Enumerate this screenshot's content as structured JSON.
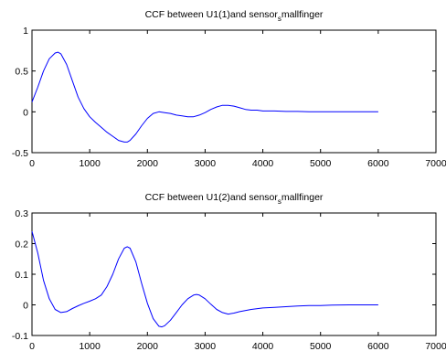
{
  "chart_data": [
    {
      "type": "line",
      "title": "CCF between U1(1)and sensor",
      "title_sub": "s",
      "title_end": "mallfinger",
      "xlim": [
        0,
        7000
      ],
      "ylim": [
        -0.5,
        1
      ],
      "xticks": [
        "0",
        "1000",
        "2000",
        "3000",
        "4000",
        "5000",
        "6000",
        "7000"
      ],
      "yticks": [
        "-0.5",
        "0",
        "0.5",
        "1"
      ],
      "grid": false,
      "series": [
        {
          "color": "#0000ff",
          "x": [
            0,
            100,
            200,
            300,
            400,
            450,
            500,
            600,
            700,
            800,
            900,
            1000,
            1100,
            1200,
            1300,
            1400,
            1500,
            1600,
            1650,
            1700,
            1800,
            1900,
            2000,
            2100,
            2200,
            2300,
            2400,
            2500,
            2600,
            2700,
            2800,
            2900,
            3000,
            3100,
            3200,
            3300,
            3400,
            3500,
            3600,
            3700,
            3800,
            3900,
            4000,
            4200,
            4400,
            4600,
            4800,
            5000,
            5200,
            5500,
            6000
          ],
          "y": [
            0.12,
            0.3,
            0.5,
            0.65,
            0.72,
            0.73,
            0.71,
            0.58,
            0.38,
            0.18,
            0.04,
            -0.06,
            -0.13,
            -0.19,
            -0.25,
            -0.3,
            -0.35,
            -0.37,
            -0.37,
            -0.35,
            -0.27,
            -0.17,
            -0.08,
            -0.02,
            0.0,
            -0.01,
            -0.02,
            -0.04,
            -0.05,
            -0.06,
            -0.06,
            -0.04,
            -0.01,
            0.03,
            0.06,
            0.08,
            0.08,
            0.07,
            0.05,
            0.03,
            0.02,
            0.02,
            0.01,
            0.01,
            0.005,
            0.005,
            0.002,
            0.002,
            0.0,
            0.0,
            0.0
          ]
        }
      ]
    },
    {
      "type": "line",
      "title": "CCF between U1(2)and sensor",
      "title_sub": "s",
      "title_end": "mallfinger",
      "xlim": [
        0,
        7000
      ],
      "ylim": [
        -0.1,
        0.3
      ],
      "xticks": [
        "0",
        "1000",
        "2000",
        "3000",
        "4000",
        "5000",
        "6000",
        "7000"
      ],
      "yticks": [
        "-0.1",
        "0",
        "0.1",
        "0.2",
        "0.3"
      ],
      "grid": false,
      "series": [
        {
          "color": "#0000ff",
          "x": [
            0,
            100,
            200,
            300,
            400,
            500,
            600,
            700,
            800,
            900,
            1000,
            1100,
            1200,
            1300,
            1400,
            1500,
            1600,
            1650,
            1700,
            1800,
            1900,
            2000,
            2100,
            2200,
            2250,
            2300,
            2400,
            2500,
            2600,
            2700,
            2800,
            2850,
            2900,
            3000,
            3100,
            3200,
            3300,
            3400,
            3500,
            3600,
            3800,
            4000,
            4200,
            4400,
            4600,
            4800,
            5000,
            5200,
            5500,
            6000
          ],
          "y": [
            0.24,
            0.17,
            0.08,
            0.02,
            -0.015,
            -0.025,
            -0.022,
            -0.012,
            -0.003,
            0.005,
            0.012,
            0.02,
            0.032,
            0.06,
            0.1,
            0.15,
            0.185,
            0.19,
            0.185,
            0.14,
            0.07,
            0.005,
            -0.045,
            -0.07,
            -0.072,
            -0.068,
            -0.05,
            -0.025,
            0.0,
            0.02,
            0.032,
            0.034,
            0.032,
            0.02,
            0.002,
            -0.015,
            -0.025,
            -0.03,
            -0.027,
            -0.022,
            -0.015,
            -0.01,
            -0.008,
            -0.006,
            -0.004,
            -0.002,
            -0.002,
            -0.001,
            0.0,
            0.0
          ]
        }
      ]
    }
  ]
}
